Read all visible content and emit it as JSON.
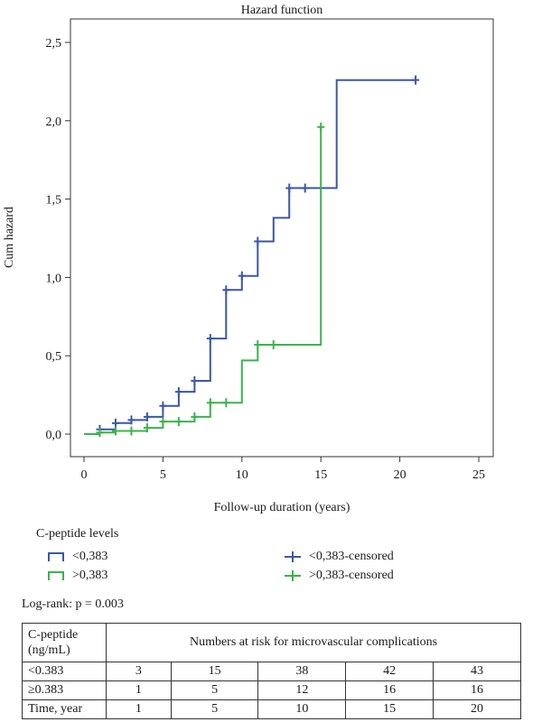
{
  "chart_data": {
    "type": "line",
    "subtype": "step",
    "title": "Hazard function",
    "xlabel": "Follow-up duration (years)",
    "ylabel": "Cum hazard",
    "xlim": [
      0,
      25
    ],
    "ylim": [
      0,
      2.5
    ],
    "x_ticks": [
      "0",
      "5",
      "10",
      "15",
      "20",
      "25"
    ],
    "y_ticks": [
      "0,0",
      "0,5",
      "1,0",
      "1,5",
      "2,0",
      "2,5"
    ],
    "grid": false,
    "series": [
      {
        "name": "<0,383",
        "color": "#3a58a8",
        "steps": [
          [
            0,
            0
          ],
          [
            1,
            0.03
          ],
          [
            2,
            0.07
          ],
          [
            3,
            0.09
          ],
          [
            4,
            0.11
          ],
          [
            5,
            0.18
          ],
          [
            6,
            0.27
          ],
          [
            7,
            0.34
          ],
          [
            8,
            0.61
          ],
          [
            9,
            0.92
          ],
          [
            10,
            1.01
          ],
          [
            11,
            1.23
          ],
          [
            12,
            1.38
          ],
          [
            13,
            1.57
          ],
          [
            16,
            2.26
          ],
          [
            21,
            2.26
          ]
        ],
        "censored": [
          [
            1,
            0.03
          ],
          [
            2,
            0.07
          ],
          [
            3,
            0.09
          ],
          [
            4,
            0.11
          ],
          [
            5,
            0.18
          ],
          [
            6,
            0.27
          ],
          [
            7,
            0.34
          ],
          [
            8,
            0.61
          ],
          [
            9,
            0.92
          ],
          [
            10,
            1.01
          ],
          [
            11,
            1.23
          ],
          [
            13,
            1.57
          ],
          [
            14,
            1.57
          ],
          [
            21,
            2.26
          ]
        ]
      },
      {
        "name": ">0,383",
        "color": "#3ab54a",
        "steps": [
          [
            0,
            0
          ],
          [
            1,
            0.01
          ],
          [
            2,
            0.02
          ],
          [
            4,
            0.04
          ],
          [
            5,
            0.08
          ],
          [
            7,
            0.11
          ],
          [
            8,
            0.2
          ],
          [
            10,
            0.47
          ],
          [
            11,
            0.57
          ],
          [
            15,
            1.96
          ]
        ],
        "censored": [
          [
            1,
            0.01
          ],
          [
            2,
            0.02
          ],
          [
            3,
            0.02
          ],
          [
            4,
            0.04
          ],
          [
            5,
            0.08
          ],
          [
            6,
            0.08
          ],
          [
            7,
            0.11
          ],
          [
            8,
            0.2
          ],
          [
            9,
            0.2
          ],
          [
            11,
            0.57
          ],
          [
            12,
            0.57
          ],
          [
            15,
            1.96
          ]
        ]
      }
    ]
  },
  "legend": {
    "title": "C-peptide levels",
    "items": [
      {
        "label": "<0,383",
        "kind": "line",
        "color": "#3a58a8"
      },
      {
        "label": ">0,383",
        "kind": "line",
        "color": "#3ab54a"
      },
      {
        "label": "<0,383-censored",
        "kind": "censor",
        "color": "#3a58a8"
      },
      {
        "label": ">0,383-censored",
        "kind": "censor",
        "color": "#3ab54a"
      }
    ]
  },
  "note": "Log-rank: p = 0.003",
  "risk_table": {
    "header_label": "C-peptide (ng/mL)",
    "header_span": "Numbers at risk for microvascular complications",
    "rows": [
      {
        "label": "<0.383",
        "values": [
          "3",
          "15",
          "38",
          "42",
          "43"
        ]
      },
      {
        "label": "≥0.383",
        "values": [
          "1",
          "5",
          "12",
          "16",
          "16"
        ]
      },
      {
        "label": "Time, year",
        "values": [
          "1",
          "5",
          "10",
          "15",
          "20"
        ]
      }
    ]
  }
}
